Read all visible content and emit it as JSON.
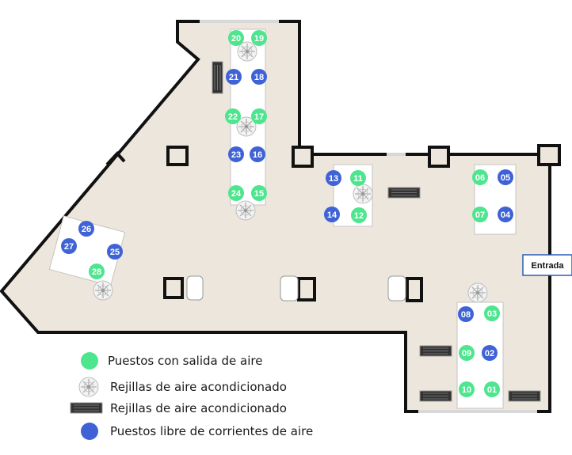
{
  "colors": {
    "floor": "#ede6dc",
    "wall": "#111111",
    "desk": "#ffffff",
    "chair": "#9a9a9a",
    "seat_air": "#4ee58f",
    "seat_free": "#3f63d6",
    "entrance_border": "#2a5bb8"
  },
  "entrance": {
    "label": "Entrada"
  },
  "seats": [
    {
      "id": "20",
      "type": "air"
    },
    {
      "id": "19",
      "type": "air"
    },
    {
      "id": "21",
      "type": "free"
    },
    {
      "id": "18",
      "type": "free"
    },
    {
      "id": "22",
      "type": "air"
    },
    {
      "id": "17",
      "type": "air"
    },
    {
      "id": "23",
      "type": "free"
    },
    {
      "id": "16",
      "type": "free"
    },
    {
      "id": "24",
      "type": "air"
    },
    {
      "id": "15",
      "type": "air"
    },
    {
      "id": "13",
      "type": "free"
    },
    {
      "id": "11",
      "type": "air"
    },
    {
      "id": "14",
      "type": "free"
    },
    {
      "id": "12",
      "type": "air"
    },
    {
      "id": "06",
      "type": "air"
    },
    {
      "id": "05",
      "type": "free"
    },
    {
      "id": "07",
      "type": "air"
    },
    {
      "id": "04",
      "type": "free"
    },
    {
      "id": "26",
      "type": "free"
    },
    {
      "id": "27",
      "type": "free"
    },
    {
      "id": "25",
      "type": "free"
    },
    {
      "id": "28",
      "type": "air"
    },
    {
      "id": "08",
      "type": "free"
    },
    {
      "id": "03",
      "type": "air"
    },
    {
      "id": "09",
      "type": "air"
    },
    {
      "id": "02",
      "type": "free"
    },
    {
      "id": "10",
      "type": "air"
    },
    {
      "id": "01",
      "type": "air"
    }
  ],
  "legend": [
    {
      "icon": "green-dot",
      "label": "Puestos con salida de aire"
    },
    {
      "icon": "round-ac-diffuser",
      "label": "Rejillas de aire acondicionado"
    },
    {
      "icon": "linear-ac-grille",
      "label": "Rejillas de aire acondicionado"
    },
    {
      "icon": "blue-dot",
      "label": "Puestos libre de corrientes de aire"
    }
  ]
}
